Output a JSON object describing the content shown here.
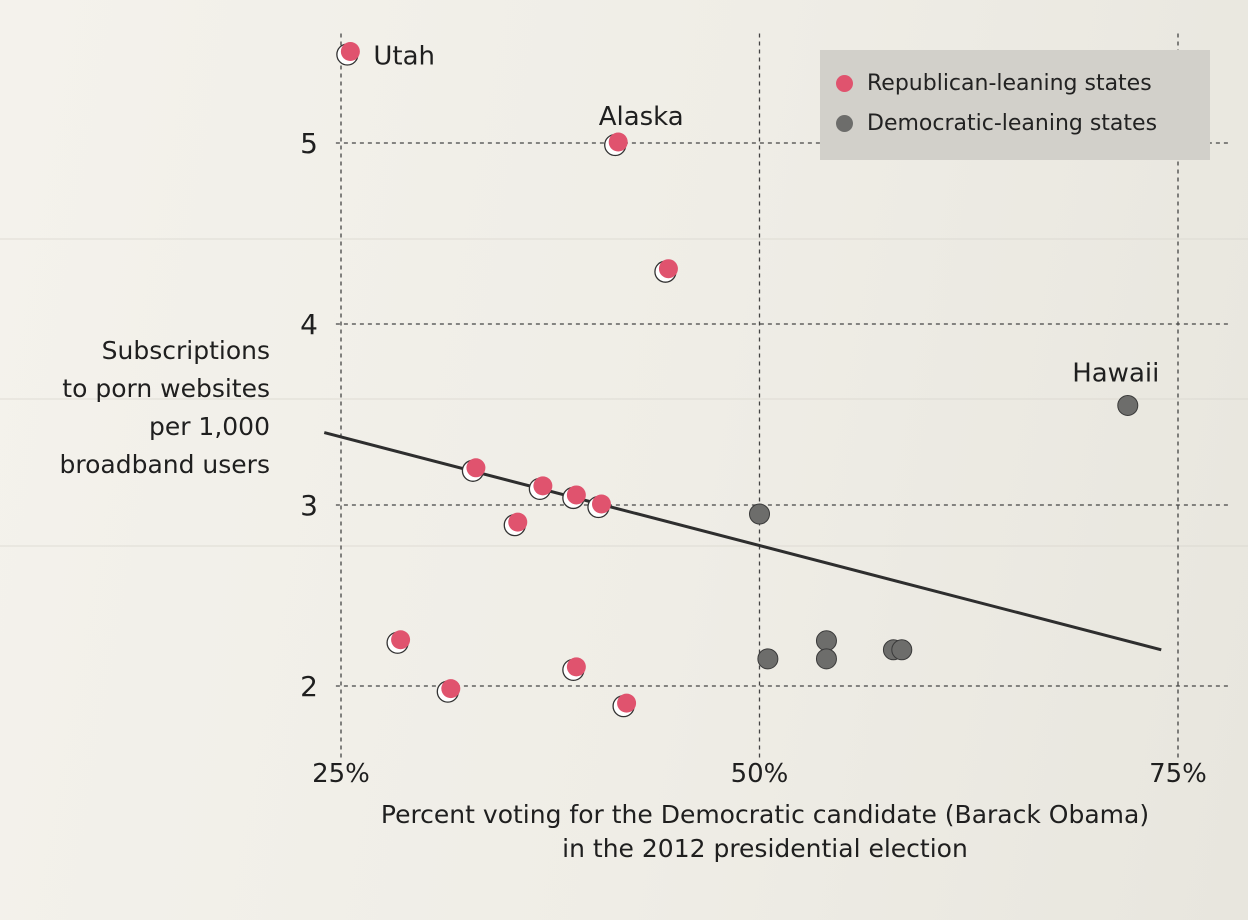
{
  "chart_data": {
    "type": "scatter",
    "title": "",
    "xlabel": "Percent voting for the Democratic candidate (Barack Obama)\nin the 2012 presidential election",
    "ylabel": "Subscriptions\nto porn websites\nper 1,000\nbroadband users",
    "x_ticks": [
      {
        "value": 25,
        "label": "25%"
      },
      {
        "value": 50,
        "label": "50%"
      },
      {
        "value": 75,
        "label": "75%"
      }
    ],
    "y_ticks": [
      {
        "value": 2,
        "label": "2"
      },
      {
        "value": 3,
        "label": "3"
      },
      {
        "value": 4,
        "label": "4"
      },
      {
        "value": 5,
        "label": "5"
      }
    ],
    "xlim": [
      23.5,
      77
    ],
    "ylim": [
      1.75,
      5.55
    ],
    "grid": true,
    "legend_position": "top-right",
    "series": [
      {
        "name": "Republican-leaning states",
        "color": "#e0536e",
        "points": [
          {
            "x": 25.5,
            "y": 5.5,
            "label": "Utah"
          },
          {
            "x": 41.5,
            "y": 5.0,
            "label": "Alaska"
          },
          {
            "x": 44.5,
            "y": 4.3
          },
          {
            "x": 33,
            "y": 3.2
          },
          {
            "x": 37,
            "y": 3.1
          },
          {
            "x": 39,
            "y": 3.05
          },
          {
            "x": 40.5,
            "y": 3.0
          },
          {
            "x": 35.5,
            "y": 2.9
          },
          {
            "x": 28.5,
            "y": 2.25
          },
          {
            "x": 39,
            "y": 2.1
          },
          {
            "x": 31.5,
            "y": 1.98
          },
          {
            "x": 42,
            "y": 1.9
          }
        ]
      },
      {
        "name": "Democratic-leaning states",
        "color": "#6d6d6b",
        "points": [
          {
            "x": 72,
            "y": 3.55,
            "label": "Hawaii"
          },
          {
            "x": 50,
            "y": 2.95
          },
          {
            "x": 50.5,
            "y": 2.15
          },
          {
            "x": 54,
            "y": 2.25
          },
          {
            "x": 54,
            "y": 2.15
          },
          {
            "x": 58,
            "y": 2.2
          },
          {
            "x": 58.5,
            "y": 2.2
          }
        ]
      }
    ],
    "trendline": {
      "x": [
        24,
        74
      ],
      "y": [
        3.4,
        2.2
      ]
    }
  }
}
